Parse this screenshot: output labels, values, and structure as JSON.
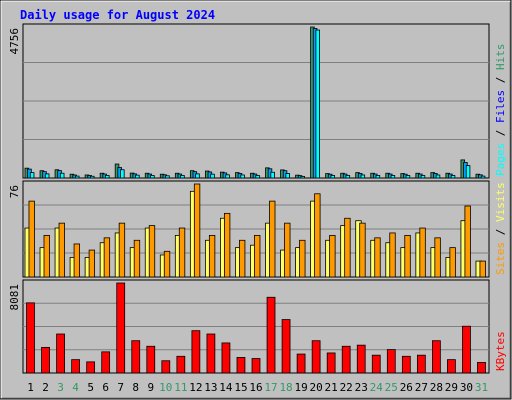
{
  "colors": {
    "outer_bg": "#c0c0c0",
    "panel_bg": "#c0c0c0",
    "title": "#0000ff",
    "hits": "#339966",
    "files": "#00a0ff",
    "pages": "#00ffff",
    "visits": "#ffff66",
    "sites": "#ff9900",
    "kbytes": "#ff0000",
    "weekend_day": "#339966",
    "weekday": "#000000"
  },
  "chart_data": {
    "type": "bar",
    "title": "Daily usage for August 2024",
    "categories": [
      "1",
      "2",
      "3",
      "4",
      "5",
      "6",
      "7",
      "8",
      "9",
      "10",
      "11",
      "12",
      "13",
      "14",
      "15",
      "16",
      "17",
      "18",
      "19",
      "20",
      "21",
      "22",
      "23",
      "24",
      "25",
      "26",
      "27",
      "28",
      "29",
      "30",
      "31"
    ],
    "weekend_days": [
      "3",
      "4",
      "10",
      "11",
      "17",
      "18",
      "24",
      "25",
      "31"
    ],
    "panels": [
      {
        "id": "hits_panel",
        "max_label": "4756",
        "ymax": 4756,
        "legend": [
          {
            "label": "Hits",
            "color": "#339966"
          },
          {
            "label": "Files",
            "color": "#0000ff"
          },
          {
            "label": "Pages",
            "color": "#00ffff"
          }
        ],
        "series": [
          {
            "name": "Hits",
            "color": "#339966",
            "values": [
              310,
              230,
              260,
              120,
              95,
              150,
              440,
              155,
              150,
              120,
              150,
              230,
              220,
              185,
              170,
              150,
              320,
              255,
              90,
              4756,
              140,
              150,
              170,
              150,
              150,
              140,
              150,
              170,
              150,
              570,
              120
            ]
          },
          {
            "name": "Files",
            "color": "#00a0ff",
            "values": [
              280,
              200,
              235,
              95,
              80,
              125,
              330,
              130,
              125,
              100,
              125,
              200,
              190,
              160,
              145,
              125,
              290,
              230,
              75,
              4710,
              120,
              125,
              145,
              125,
              125,
              120,
              125,
              145,
              125,
              490,
              100
            ]
          },
          {
            "name": "Pages",
            "color": "#00ffff",
            "values": [
              170,
              130,
              150,
              60,
              55,
              80,
              260,
              90,
              80,
              70,
              80,
              130,
              120,
              100,
              95,
              80,
              180,
              140,
              50,
              4660,
              80,
              80,
              95,
              80,
              80,
              80,
              80,
              95,
              80,
              390,
              60
            ]
          }
        ]
      },
      {
        "id": "visits_panel",
        "max_label": "76",
        "ymax": 76,
        "legend": [
          {
            "label": "Visits",
            "color": "#ffff66"
          },
          {
            "label": "Sites",
            "color": "#ff9900"
          }
        ],
        "series": [
          {
            "name": "Visits",
            "color": "#ffff66",
            "values": [
              40,
              24,
              40,
              16,
              16,
              28,
              36,
              24,
              40,
              18,
              34,
              70,
              30,
              48,
              24,
              26,
              44,
              22,
              24,
              62,
              30,
              42,
              46,
              30,
              28,
              24,
              36,
              24,
              16,
              46,
              13
            ]
          },
          {
            "name": "Sites",
            "color": "#ff9900",
            "values": [
              62,
              34,
              44,
              27,
              22,
              32,
              44,
              30,
              42,
              21,
              40,
              76,
              34,
              52,
              30,
              34,
              62,
              44,
              30,
              68,
              34,
              48,
              44,
              32,
              36,
              34,
              40,
              32,
              24,
              58,
              13
            ]
          }
        ]
      },
      {
        "id": "kbytes_panel",
        "max_label": "8081",
        "ymax": 8081,
        "legend": [
          {
            "label": "KBytes",
            "color": "#ff0000"
          }
        ],
        "series": [
          {
            "name": "KBytes",
            "color": "#ff0000",
            "values": [
              6300,
              2300,
              3500,
              1200,
              1000,
              1900,
              8081,
              2900,
              2400,
              1100,
              1500,
              3800,
              3500,
              2700,
              1400,
              1300,
              6800,
              4800,
              1700,
              2900,
              1800,
              2400,
              2500,
              1600,
              2100,
              1500,
              1600,
              2900,
              1200,
              4200,
              950
            ]
          }
        ]
      }
    ]
  }
}
